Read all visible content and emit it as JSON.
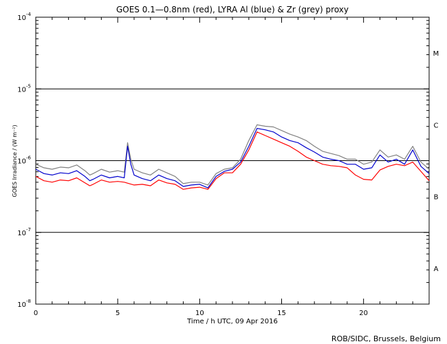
{
  "chart_data": {
    "type": "line",
    "title": "GOES 0.1—0.8nm (red), LYRA Al (blue) & Zr (grey) proxy",
    "xlabel": "Time / h UTC, 09 Apr 2016",
    "ylabel": "GOES Irradiance / (W m⁻²)",
    "xlim": [
      0,
      24
    ],
    "ylim_log10": [
      -8,
      -4
    ],
    "yscale": "log",
    "x_ticks": [
      0,
      5,
      10,
      15,
      20
    ],
    "y_ticks": [
      {
        "base": "10",
        "exp": "-4",
        "log10": -4
      },
      {
        "base": "10",
        "exp": "-5",
        "log10": -5
      },
      {
        "base": "10",
        "exp": "-6",
        "log10": -6
      },
      {
        "base": "10",
        "exp": "-7",
        "log10": -7
      },
      {
        "base": "10",
        "exp": "-8",
        "log10": -8
      }
    ],
    "flare_classes": [
      {
        "label": "M",
        "log10": -4.5
      },
      {
        "label": "C",
        "log10": -5.5
      },
      {
        "label": "B",
        "log10": -6.5
      },
      {
        "label": "A",
        "log10": -7.5
      }
    ],
    "reference_lines_log10": [
      -5,
      -6,
      -7
    ],
    "series": [
      {
        "name": "GOES 0.1-0.8nm",
        "color": "#ff0000",
        "x": [
          0,
          0.5,
          1,
          1.5,
          2,
          2.5,
          3,
          3.3,
          3.5,
          4,
          4.5,
          5,
          5.4,
          5.7,
          6,
          6.5,
          7,
          7.5,
          8,
          8.5,
          9,
          9.5,
          10,
          10.5,
          11,
          11.5,
          12,
          12.5,
          13,
          13.5,
          14,
          14.5,
          15,
          15.5,
          16,
          16.5,
          17,
          17.5,
          18,
          18.5,
          19,
          19.5,
          20,
          20.5,
          21,
          21.5,
          22,
          22.5,
          23,
          23.5,
          24
        ],
        "log10": [
          -6.22,
          -6.28,
          -6.3,
          -6.27,
          -6.28,
          -6.24,
          -6.31,
          -6.35,
          -6.33,
          -6.27,
          -6.3,
          -6.29,
          -6.3,
          -6.32,
          -6.34,
          -6.33,
          -6.35,
          -6.27,
          -6.31,
          -6.33,
          -6.4,
          -6.38,
          -6.37,
          -6.4,
          -6.25,
          -6.17,
          -6.17,
          -6.05,
          -5.85,
          -5.6,
          -5.65,
          -5.7,
          -5.75,
          -5.8,
          -5.87,
          -5.95,
          -6.0,
          -6.05,
          -6.07,
          -6.08,
          -6.1,
          -6.2,
          -6.26,
          -6.27,
          -6.13,
          -6.08,
          -6.05,
          -6.07,
          -6.02,
          -6.15,
          -6.28
        ]
      },
      {
        "name": "LYRA Al proxy",
        "color": "#0000cc",
        "x": [
          0,
          0.5,
          1,
          1.5,
          2,
          2.5,
          3,
          3.3,
          3.5,
          4,
          4.5,
          5,
          5.4,
          5.6,
          5.8,
          6,
          6.5,
          7,
          7.5,
          8,
          8.5,
          9,
          9.5,
          10,
          10.5,
          11,
          11.5,
          12,
          12.5,
          13,
          13.5,
          14,
          14.5,
          15,
          15.5,
          16,
          16.5,
          17,
          17.5,
          18,
          18.5,
          19,
          19.5,
          20,
          20.5,
          21,
          21.5,
          22,
          22.5,
          23,
          23.5,
          24
        ],
        "log10": [
          -6.12,
          -6.18,
          -6.2,
          -6.17,
          -6.18,
          -6.14,
          -6.22,
          -6.28,
          -6.26,
          -6.2,
          -6.24,
          -6.22,
          -6.24,
          -5.8,
          -6.05,
          -6.2,
          -6.25,
          -6.28,
          -6.2,
          -6.25,
          -6.28,
          -6.36,
          -6.34,
          -6.33,
          -6.38,
          -6.22,
          -6.15,
          -6.12,
          -6.02,
          -5.8,
          -5.55,
          -5.57,
          -5.6,
          -5.67,
          -5.72,
          -5.75,
          -5.82,
          -5.88,
          -5.95,
          -5.98,
          -6.0,
          -6.05,
          -6.05,
          -6.12,
          -6.1,
          -5.92,
          -6.02,
          -5.98,
          -6.05,
          -5.85,
          -6.08,
          -6.18
        ]
      },
      {
        "name": "LYRA Zr proxy",
        "color": "#808080",
        "x": [
          0,
          0.5,
          1,
          1.5,
          2,
          2.5,
          3,
          3.3,
          3.5,
          4,
          4.5,
          5,
          5.4,
          5.6,
          5.8,
          6,
          6.5,
          7,
          7.5,
          8,
          8.5,
          9,
          9.5,
          10,
          10.5,
          11,
          11.5,
          12,
          12.5,
          13,
          13.5,
          14,
          14.5,
          15,
          15.5,
          16,
          16.5,
          17,
          17.5,
          18,
          18.5,
          19,
          19.5,
          20,
          20.5,
          21,
          21.5,
          22,
          22.5,
          23,
          23.5,
          24
        ],
        "log10": [
          -6.05,
          -6.1,
          -6.12,
          -6.09,
          -6.1,
          -6.06,
          -6.14,
          -6.2,
          -6.18,
          -6.12,
          -6.16,
          -6.14,
          -6.16,
          -5.75,
          -5.98,
          -6.12,
          -6.17,
          -6.2,
          -6.12,
          -6.17,
          -6.22,
          -6.32,
          -6.3,
          -6.3,
          -6.34,
          -6.18,
          -6.12,
          -6.1,
          -5.98,
          -5.72,
          -5.5,
          -5.52,
          -5.53,
          -5.58,
          -5.63,
          -5.67,
          -5.72,
          -5.8,
          -5.87,
          -5.9,
          -5.93,
          -5.98,
          -5.98,
          -6.05,
          -6.02,
          -5.85,
          -5.95,
          -5.92,
          -5.98,
          -5.8,
          -6.02,
          -6.12
        ]
      }
    ],
    "credit": "ROB/SIDC, Brussels, Belgium"
  }
}
